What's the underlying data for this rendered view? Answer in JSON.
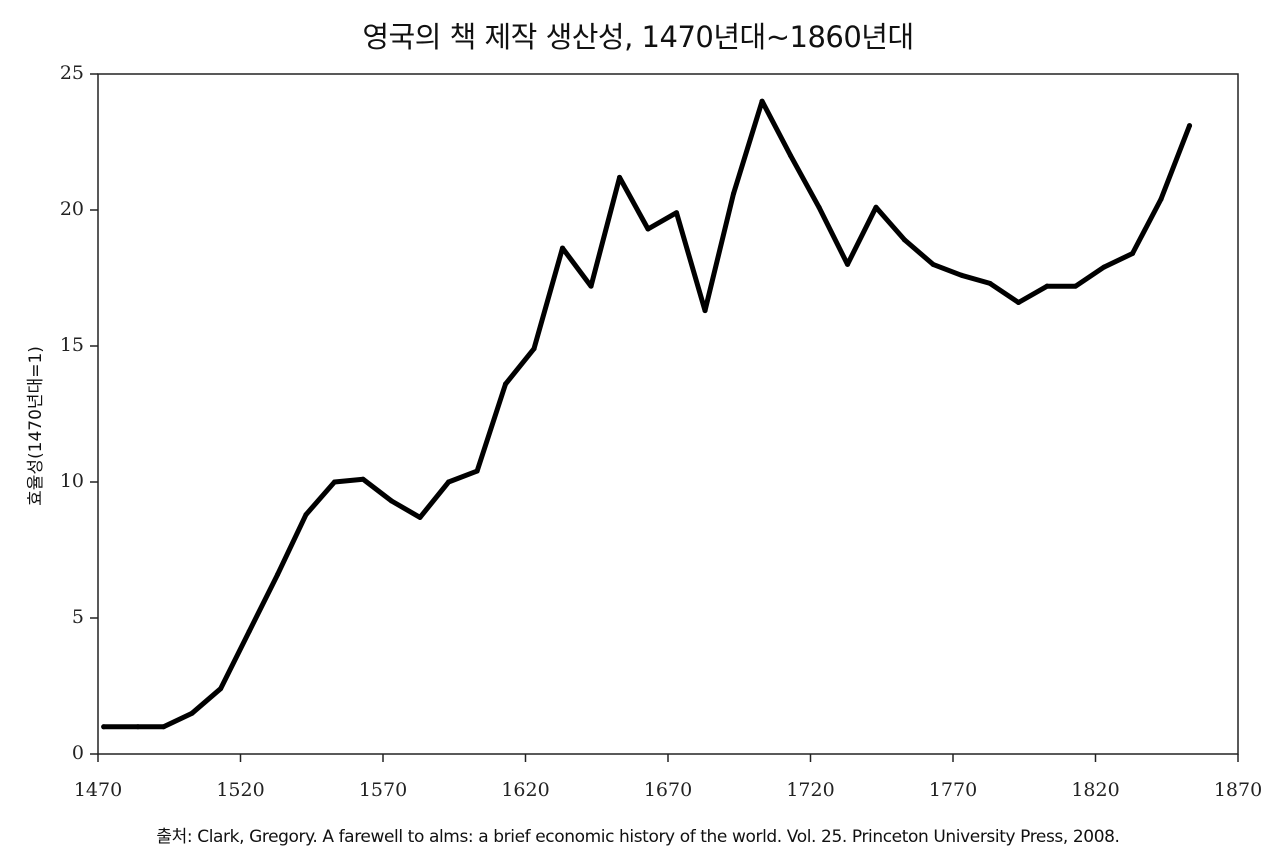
{
  "chart_data": {
    "type": "line",
    "title": "영국의 책 제작 생산성, 1470년대~1860년대",
    "xlabel": "",
    "ylabel": "효율성(1470년대=1)",
    "source": "출처: Clark, Gregory. A farewell to alms: a brief economic history of the world. Vol. 25. Princeton University Press, 2008.",
    "xlim": [
      1470,
      1870
    ],
    "ylim": [
      0,
      25
    ],
    "x_ticks": [
      1470,
      1520,
      1570,
      1620,
      1670,
      1720,
      1770,
      1820,
      1870
    ],
    "y_ticks": [
      0,
      5,
      10,
      15,
      20,
      25
    ],
    "grid": false,
    "legend": "none",
    "line_color": "#000000",
    "series": [
      {
        "x": [
          1472,
          1484,
          1493,
          1503,
          1513,
          1523,
          1533,
          1543,
          1553,
          1563,
          1573,
          1583,
          1593,
          1603,
          1613,
          1623,
          1633,
          1643,
          1653,
          1663,
          1673,
          1683,
          1693,
          1703,
          1713,
          1723,
          1733,
          1743,
          1753,
          1763,
          1773,
          1783,
          1793,
          1803,
          1813,
          1823,
          1833,
          1843,
          1853
        ],
        "y": [
          1.0,
          1.0,
          1.0,
          1.5,
          2.4,
          4.5,
          6.6,
          8.8,
          10.0,
          10.1,
          9.3,
          8.7,
          10.0,
          10.4,
          13.6,
          14.9,
          18.6,
          17.2,
          21.2,
          19.3,
          19.9,
          16.3,
          20.6,
          24.0,
          22.0,
          20.1,
          18.0,
          20.1,
          18.9,
          18.0,
          17.6,
          17.3,
          16.6,
          17.2,
          17.2,
          17.9,
          18.4,
          20.4,
          23.1
        ]
      }
    ]
  }
}
